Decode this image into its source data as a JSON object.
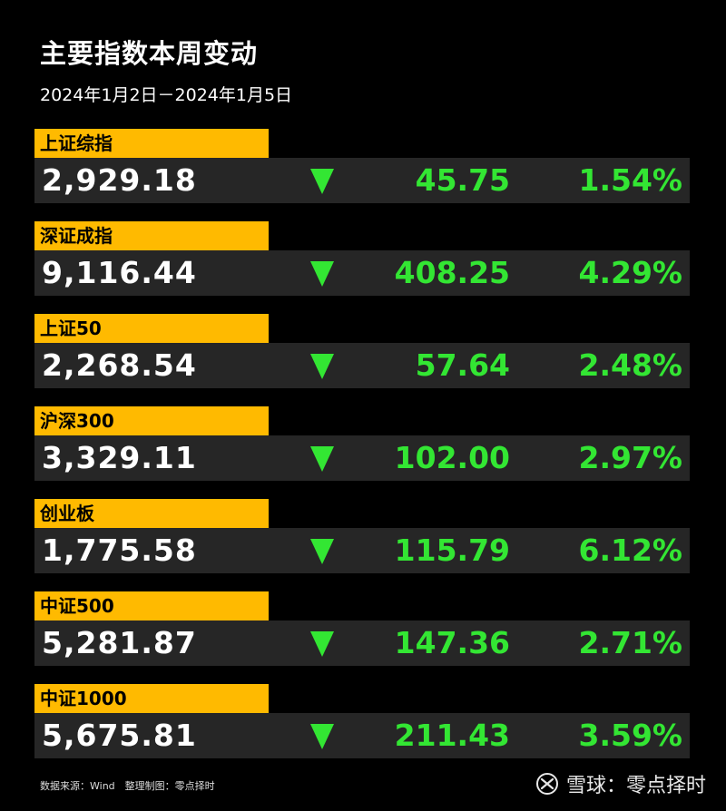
{
  "header": {
    "title": "主要指数本周变动",
    "date_range": "2024年1月2日－2024年1月5日"
  },
  "colors": {
    "label_bg": "#FFBA00",
    "row_bg": "#262626",
    "change_green": "#33E633",
    "background": "#000000"
  },
  "indices": [
    {
      "name": "上证综指",
      "value": "2,929.18",
      "direction": "down",
      "change": "45.75",
      "change_pct": "1.54%"
    },
    {
      "name": "深证成指",
      "value": "9,116.44",
      "direction": "down",
      "change": "408.25",
      "change_pct": "4.29%"
    },
    {
      "name": "上证50",
      "value": "2,268.54",
      "direction": "down",
      "change": "57.64",
      "change_pct": "2.48%"
    },
    {
      "name": "沪深300",
      "value": "3,329.11",
      "direction": "down",
      "change": "102.00",
      "change_pct": "2.97%"
    },
    {
      "name": "创业板",
      "value": "1,775.58",
      "direction": "down",
      "change": "115.79",
      "change_pct": "6.12%"
    },
    {
      "name": "中证500",
      "value": "5,281.87",
      "direction": "down",
      "change": "147.36",
      "change_pct": "2.71%"
    },
    {
      "name": "中证1000",
      "value": "5,675.81",
      "direction": "down",
      "change": "211.43",
      "change_pct": "3.59%"
    }
  ],
  "footer": {
    "source": "数据来源：Wind　整理制图：零点择时",
    "watermark_text": "雪球：零点择时",
    "watermark_icon": "snowball-logo-icon"
  }
}
